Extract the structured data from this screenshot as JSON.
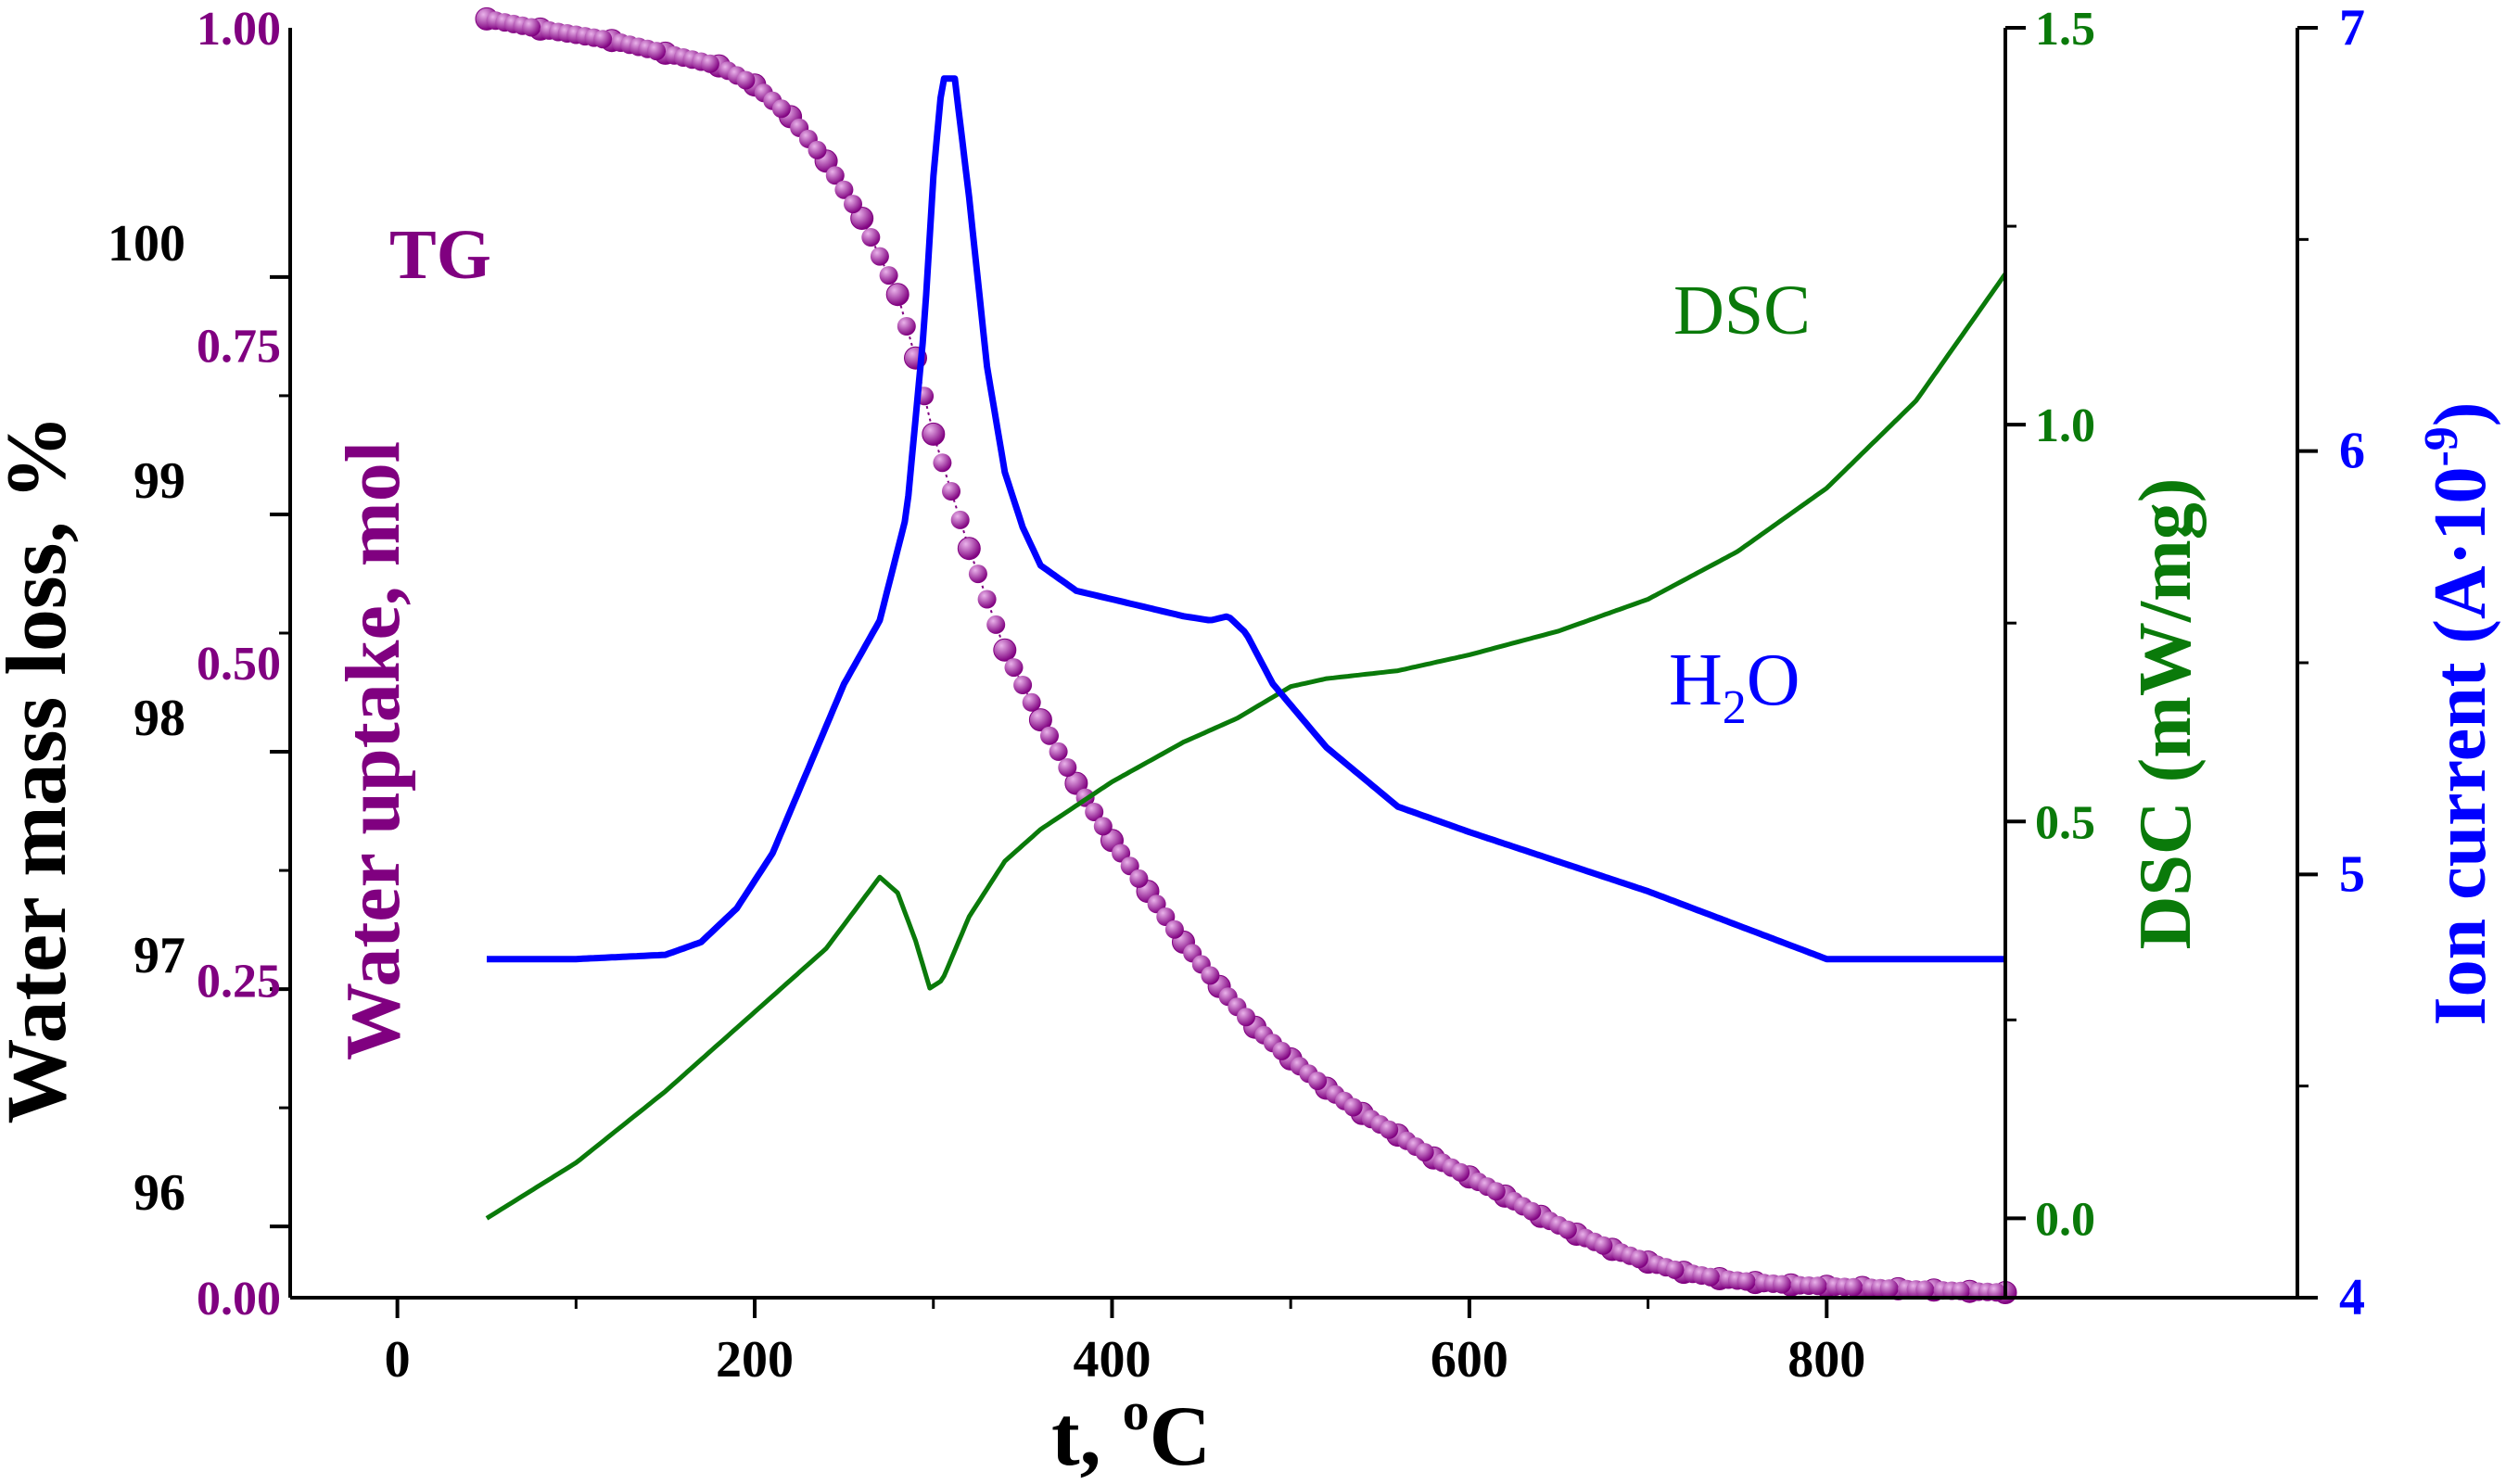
{
  "colors": {
    "axis": "#000000",
    "tg": "#800080",
    "tg_highlight": "#e9b3ea",
    "dsc": "#0a7a0a",
    "ion": "#0000ff"
  },
  "chart_data": {
    "type": "line",
    "title": "",
    "xlabel": "t, °C",
    "xlabel_parts": {
      "main": "t, ",
      "sup": "o",
      "unit": "C"
    },
    "xlim": [
      -60,
      900
    ],
    "xticks": [
      0,
      200,
      400,
      600,
      800
    ],
    "xtick_labels": [
      "0",
      "200",
      "400",
      "600",
      "800"
    ],
    "axes": {
      "mass": {
        "label": "Water mass loss, %",
        "lim": [
          95.7,
          101.05
        ],
        "ticks": [
          96,
          97,
          98,
          99,
          100
        ],
        "tick_labels": [
          "96",
          "97",
          "98",
          "99",
          "100"
        ]
      },
      "uptake": {
        "label": "Water uptake, mol",
        "lim": [
          0,
          1.0
        ],
        "ticks": [
          0,
          0.25,
          0.5,
          0.75,
          1.0
        ],
        "tick_labels": [
          "0.00",
          "0.25",
          "0.50",
          "0.75",
          "1.00"
        ]
      },
      "dsc": {
        "label": "DSC (mW/mg)",
        "lim": [
          -0.1,
          1.5
        ],
        "ticks": [
          0,
          0.5,
          1.0,
          1.5
        ],
        "tick_labels": [
          "0.0",
          "0.5",
          "1.0",
          "1.5"
        ]
      },
      "ion": {
        "label_main": "Ion current (A·10",
        "label_sup": "-9",
        "label_end": ")",
        "lim": [
          4,
          7
        ],
        "ticks": [
          4,
          5,
          6,
          7
        ],
        "tick_labels": [
          "4",
          "5",
          "6",
          "7"
        ]
      }
    },
    "annotations": {
      "tg": "TG",
      "dsc": "DSC",
      "h2o_main": "H",
      "h2o_sub": "2",
      "h2o_end": "O"
    },
    "series": [
      {
        "name": "TG",
        "axis": "uptake",
        "style": "spheres",
        "x": [
          50,
          80,
          120,
          150,
          180,
          200,
          220,
          240,
          260,
          280,
          290,
          300,
          320,
          340,
          360,
          380,
          400,
          420,
          440,
          460,
          480,
          500,
          520,
          540,
          560,
          580,
          600,
          620,
          640,
          660,
          680,
          700,
          720,
          740,
          760,
          780,
          800,
          820,
          840,
          860,
          880,
          900
        ],
        "values": [
          1.007,
          0.999,
          0.99,
          0.98,
          0.97,
          0.955,
          0.93,
          0.895,
          0.85,
          0.79,
          0.74,
          0.68,
          0.59,
          0.51,
          0.455,
          0.405,
          0.36,
          0.32,
          0.28,
          0.245,
          0.213,
          0.188,
          0.165,
          0.145,
          0.128,
          0.11,
          0.095,
          0.08,
          0.064,
          0.05,
          0.038,
          0.028,
          0.02,
          0.015,
          0.012,
          0.01,
          0.009,
          0.008,
          0.007,
          0.006,
          0.005,
          0.004
        ]
      },
      {
        "name": "DSC",
        "axis": "dsc",
        "style": "line",
        "x": [
          50,
          100,
          150,
          200,
          240,
          260,
          270,
          280,
          290,
          298,
          305,
          320,
          340,
          360,
          380,
          400,
          440,
          470,
          500,
          520,
          560,
          600,
          650,
          700,
          750,
          800,
          850,
          900
        ],
        "values": [
          0.0,
          0.07,
          0.16,
          0.26,
          0.34,
          0.4,
          0.43,
          0.41,
          0.35,
          0.29,
          0.3,
          0.38,
          0.45,
          0.49,
          0.52,
          0.55,
          0.6,
          0.63,
          0.67,
          0.68,
          0.69,
          0.71,
          0.74,
          0.78,
          0.84,
          0.92,
          1.03,
          1.19
        ]
      },
      {
        "name": "H2O",
        "axis": "ion",
        "style": "line",
        "x": [
          50,
          100,
          150,
          170,
          190,
          210,
          230,
          250,
          270,
          285,
          295,
          300,
          305,
          312,
          320,
          330,
          340,
          350,
          360,
          380,
          400,
          420,
          440,
          455,
          465,
          475,
          490,
          520,
          560,
          600,
          650,
          700,
          750,
          800,
          850,
          900
        ],
        "values": [
          4.8,
          4.8,
          4.81,
          4.84,
          4.92,
          5.05,
          5.25,
          5.45,
          5.6,
          5.85,
          6.3,
          6.65,
          6.88,
          6.88,
          6.6,
          6.2,
          5.95,
          5.82,
          5.73,
          5.67,
          5.65,
          5.63,
          5.61,
          5.6,
          5.61,
          5.57,
          5.45,
          5.3,
          5.16,
          5.1,
          5.03,
          4.96,
          4.88,
          4.8,
          4.8,
          4.8
        ]
      }
    ]
  }
}
